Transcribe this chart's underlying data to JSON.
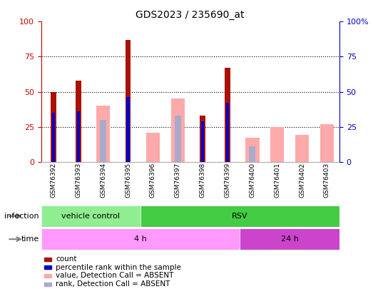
{
  "title": "GDS2023 / 235690_at",
  "samples": [
    "GSM76392",
    "GSM76393",
    "GSM76394",
    "GSM76395",
    "GSM76396",
    "GSM76397",
    "GSM76398",
    "GSM76399",
    "GSM76400",
    "GSM76401",
    "GSM76402",
    "GSM76403"
  ],
  "count": [
    50,
    58,
    0,
    87,
    0,
    0,
    33,
    67,
    0,
    0,
    0,
    0
  ],
  "percentile_rank": [
    35,
    36,
    0,
    46,
    0,
    0,
    29,
    42,
    0,
    0,
    0,
    0
  ],
  "value_absent": [
    0,
    0,
    40,
    0,
    21,
    45,
    0,
    0,
    17,
    25,
    19,
    27
  ],
  "rank_absent": [
    0,
    0,
    30,
    0,
    0,
    33,
    0,
    0,
    11,
    0,
    0,
    0
  ],
  "infection_groups": [
    {
      "label": "vehicle control",
      "start": 0,
      "end": 4,
      "color": "#90ee90"
    },
    {
      "label": "RSV",
      "start": 4,
      "end": 12,
      "color": "#44cc44"
    }
  ],
  "time_groups": [
    {
      "label": "4 h",
      "start": 0,
      "end": 8,
      "color": "#ff99ff"
    },
    {
      "label": "24 h",
      "start": 8,
      "end": 12,
      "color": "#cc44cc"
    }
  ],
  "ylim": [
    0,
    100
  ],
  "count_color": "#aa1100",
  "rank_color": "#0000cc",
  "value_absent_color": "#ffaaaa",
  "rank_absent_color": "#aaaacc",
  "bg_color": "#d8d8d8",
  "plot_bg": "#ffffff",
  "left_axis_color": "#cc0000",
  "right_axis_color": "#0000cc",
  "legend_items": [
    {
      "label": "count",
      "color": "#aa1100"
    },
    {
      "label": "percentile rank within the sample",
      "color": "#0000cc"
    },
    {
      "label": "value, Detection Call = ABSENT",
      "color": "#ffaaaa"
    },
    {
      "label": "rank, Detection Call = ABSENT",
      "color": "#aaaacc"
    }
  ]
}
